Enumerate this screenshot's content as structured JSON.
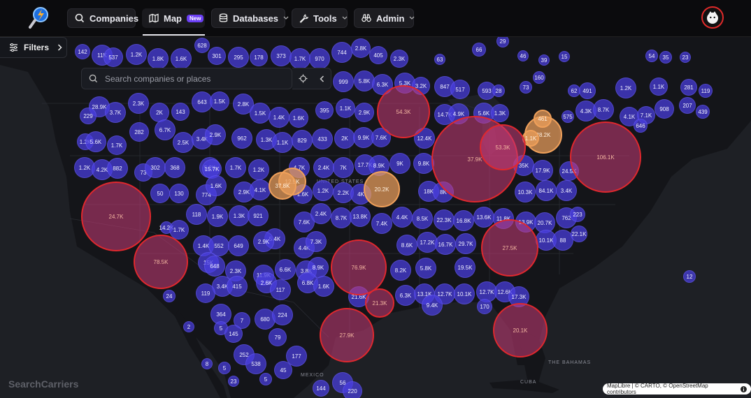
{
  "nav": {
    "companies": "Companies",
    "map": "Map",
    "map_badge": "New",
    "databases": "Databases",
    "tools": "Tools",
    "admin": "Admin"
  },
  "filters": {
    "label": "Filters"
  },
  "search": {
    "placeholder": "Search companies or places"
  },
  "watermark": "SearchCarriers",
  "attribution": "MapLibre | © CARTO, © OpenStreetMap contributors",
  "places": {
    "us": "UNITED STATES",
    "mexico": "MEXICO",
    "cuba": "CUBA",
    "bahamas": "THE BAHAMAS"
  },
  "colors": {
    "small": "#4a3fe0",
    "medium": "#f0a05a",
    "large": "#d0242c"
  },
  "clusters": [
    {
      "label": "142",
      "tier": "s"
    },
    {
      "label": "11K",
      "tier": "s"
    },
    {
      "label": "537",
      "tier": "s"
    },
    {
      "label": "1.2K",
      "tier": "s"
    },
    {
      "label": "1.8K",
      "tier": "s"
    },
    {
      "label": "1.6K",
      "tier": "s"
    },
    {
      "label": "628",
      "tier": "s"
    },
    {
      "label": "301",
      "tier": "s"
    },
    {
      "label": "295",
      "tier": "s"
    },
    {
      "label": "178",
      "tier": "s"
    },
    {
      "label": "373",
      "tier": "s"
    },
    {
      "label": "1.7K",
      "tier": "s"
    },
    {
      "label": "970",
      "tier": "s"
    },
    {
      "label": "744",
      "tier": "s"
    },
    {
      "label": "2.8K",
      "tier": "s"
    },
    {
      "label": "405",
      "tier": "s"
    },
    {
      "label": "2.3K",
      "tier": "s"
    },
    {
      "label": "66",
      "tier": "s"
    },
    {
      "label": "29",
      "tier": "s"
    },
    {
      "label": "63",
      "tier": "s"
    },
    {
      "label": "46",
      "tier": "s"
    },
    {
      "label": "39",
      "tier": "s"
    },
    {
      "label": "15",
      "tier": "s"
    },
    {
      "label": "54",
      "tier": "s"
    },
    {
      "label": "35",
      "tier": "s"
    },
    {
      "label": "23",
      "tier": "s"
    },
    {
      "label": "999",
      "tier": "s"
    },
    {
      "label": "5.8K",
      "tier": "s"
    },
    {
      "label": "6.3K",
      "tier": "s"
    },
    {
      "label": "5.3K",
      "tier": "s"
    },
    {
      "label": "3.2K",
      "tier": "s"
    },
    {
      "label": "847",
      "tier": "s"
    },
    {
      "label": "517",
      "tier": "s"
    },
    {
      "label": "593",
      "tier": "s"
    },
    {
      "label": "28",
      "tier": "s"
    },
    {
      "label": "160",
      "tier": "s"
    },
    {
      "label": "73",
      "tier": "s"
    },
    {
      "label": "62",
      "tier": "s"
    },
    {
      "label": "491",
      "tier": "s"
    },
    {
      "label": "1.2K",
      "tier": "s"
    },
    {
      "label": "1.1K",
      "tier": "s"
    },
    {
      "label": "281",
      "tier": "s"
    },
    {
      "label": "119",
      "tier": "s"
    },
    {
      "label": "28.9K",
      "tier": "s"
    },
    {
      "label": "3.7K",
      "tier": "s"
    },
    {
      "label": "2.3K",
      "tier": "s"
    },
    {
      "label": "2K",
      "tier": "s"
    },
    {
      "label": "143",
      "tier": "s"
    },
    {
      "label": "643",
      "tier": "s"
    },
    {
      "label": "1.5K",
      "tier": "s"
    },
    {
      "label": "2.8K",
      "tier": "s"
    },
    {
      "label": "1.5K",
      "tier": "s"
    },
    {
      "label": "1.4K",
      "tier": "s"
    },
    {
      "label": "1.6K",
      "tier": "s"
    },
    {
      "label": "395",
      "tier": "s"
    },
    {
      "label": "1.1K",
      "tier": "s"
    },
    {
      "label": "2.9K",
      "tier": "s"
    },
    {
      "label": "14.7K",
      "tier": "s"
    },
    {
      "label": "4.9K",
      "tier": "s"
    },
    {
      "label": "5.6K",
      "tier": "s"
    },
    {
      "label": "1.3K",
      "tier": "s"
    },
    {
      "label": "575",
      "tier": "s"
    },
    {
      "label": "4.3K",
      "tier": "s"
    },
    {
      "label": "8.7K",
      "tier": "s"
    },
    {
      "label": "4.1K",
      "tier": "s"
    },
    {
      "label": "7.1K",
      "tier": "s"
    },
    {
      "label": "908",
      "tier": "s"
    },
    {
      "label": "207",
      "tier": "s"
    },
    {
      "label": "439",
      "tier": "s"
    },
    {
      "label": "229",
      "tier": "s"
    },
    {
      "label": "282",
      "tier": "s"
    },
    {
      "label": "6.7K",
      "tier": "s"
    },
    {
      "label": "2.5K",
      "tier": "s"
    },
    {
      "label": "3.4K",
      "tier": "s"
    },
    {
      "label": "2.9K",
      "tier": "s"
    },
    {
      "label": "962",
      "tier": "s"
    },
    {
      "label": "1.3K",
      "tier": "s"
    },
    {
      "label": "1.1K",
      "tier": "s"
    },
    {
      "label": "829",
      "tier": "s"
    },
    {
      "label": "433",
      "tier": "s"
    },
    {
      "label": "2K",
      "tier": "s"
    },
    {
      "label": "9.9K",
      "tier": "s"
    },
    {
      "label": "7.6K",
      "tier": "s"
    },
    {
      "label": "12.4K",
      "tier": "s"
    },
    {
      "label": "646",
      "tier": "s"
    },
    {
      "label": "1.2K",
      "tier": "s"
    },
    {
      "label": "5.6K",
      "tier": "s"
    },
    {
      "label": "1.7K",
      "tier": "s"
    },
    {
      "label": "1.2K",
      "tier": "s"
    },
    {
      "label": "4.2K",
      "tier": "s"
    },
    {
      "label": "882",
      "tier": "s"
    },
    {
      "label": "73",
      "tier": "s"
    },
    {
      "label": "302",
      "tier": "s"
    },
    {
      "label": "368",
      "tier": "s"
    },
    {
      "label": "5.2K",
      "tier": "s"
    },
    {
      "label": "15.7K",
      "tier": "s"
    },
    {
      "label": "1.7K",
      "tier": "s"
    },
    {
      "label": "1.2K",
      "tier": "s"
    },
    {
      "label": "4.7K",
      "tier": "s"
    },
    {
      "label": "2.4K",
      "tier": "s"
    },
    {
      "label": "7K",
      "tier": "s"
    },
    {
      "label": "17.7K",
      "tier": "s"
    },
    {
      "label": "8.9K",
      "tier": "s"
    },
    {
      "label": "9K",
      "tier": "s"
    },
    {
      "label": "9.8K",
      "tier": "s"
    },
    {
      "label": "35K",
      "tier": "s"
    },
    {
      "label": "17.9K",
      "tier": "s"
    },
    {
      "label": "24.5K",
      "tier": "s"
    },
    {
      "label": "50",
      "tier": "s"
    },
    {
      "label": "130",
      "tier": "s"
    },
    {
      "label": "774",
      "tier": "s"
    },
    {
      "label": "1.6K",
      "tier": "s"
    },
    {
      "label": "2.9K",
      "tier": "s"
    },
    {
      "label": "4.1K",
      "tier": "s"
    },
    {
      "label": "1.6K",
      "tier": "s"
    },
    {
      "label": "1.2K",
      "tier": "s"
    },
    {
      "label": "2.2K",
      "tier": "s"
    },
    {
      "label": "4K",
      "tier": "s"
    },
    {
      "label": "18K",
      "tier": "s"
    },
    {
      "label": "8K",
      "tier": "s"
    },
    {
      "label": "10.3K",
      "tier": "s"
    },
    {
      "label": "84.1K",
      "tier": "s"
    },
    {
      "label": "3.4K",
      "tier": "s"
    },
    {
      "label": "118",
      "tier": "s"
    },
    {
      "label": "1.9K",
      "tier": "s"
    },
    {
      "label": "1.3K",
      "tier": "s"
    },
    {
      "label": "921",
      "tier": "s"
    },
    {
      "label": "7.6K",
      "tier": "s"
    },
    {
      "label": "2.4K",
      "tier": "s"
    },
    {
      "label": "8.7K",
      "tier": "s"
    },
    {
      "label": "13.8K",
      "tier": "s"
    },
    {
      "label": "7.4K",
      "tier": "s"
    },
    {
      "label": "4.4K",
      "tier": "s"
    },
    {
      "label": "8.5K",
      "tier": "s"
    },
    {
      "label": "22.3K",
      "tier": "s"
    },
    {
      "label": "16.8K",
      "tier": "s"
    },
    {
      "label": "13.6K",
      "tier": "s"
    },
    {
      "label": "11.8K",
      "tier": "s"
    },
    {
      "label": "13.9K",
      "tier": "s"
    },
    {
      "label": "20.7K",
      "tier": "s"
    },
    {
      "label": "762",
      "tier": "s"
    },
    {
      "label": "223",
      "tier": "s"
    },
    {
      "label": "14.2K",
      "tier": "s"
    },
    {
      "label": "1.7K",
      "tier": "s"
    },
    {
      "label": "1.4K",
      "tier": "s"
    },
    {
      "label": "552",
      "tier": "s"
    },
    {
      "label": "649",
      "tier": "s"
    },
    {
      "label": "5.4K",
      "tier": "s"
    },
    {
      "label": "2.9K",
      "tier": "s"
    },
    {
      "label": "4.4K",
      "tier": "s"
    },
    {
      "label": "7.3K",
      "tier": "s"
    },
    {
      "label": "8.6K",
      "tier": "s"
    },
    {
      "label": "17.2K",
      "tier": "s"
    },
    {
      "label": "16.7K",
      "tier": "s"
    },
    {
      "label": "29.7K",
      "tier": "s"
    },
    {
      "label": "10.1K",
      "tier": "s"
    },
    {
      "label": "88",
      "tier": "s"
    },
    {
      "label": "22.1K",
      "tier": "s"
    },
    {
      "label": "15K",
      "tier": "s"
    },
    {
      "label": "648",
      "tier": "s"
    },
    {
      "label": "2.3K",
      "tier": "s"
    },
    {
      "label": "11.9K",
      "tier": "s"
    },
    {
      "label": "2.6K",
      "tier": "s"
    },
    {
      "label": "6.6K",
      "tier": "s"
    },
    {
      "label": "3.8K",
      "tier": "s"
    },
    {
      "label": "8.9K",
      "tier": "s"
    },
    {
      "label": "6.8K",
      "tier": "s"
    },
    {
      "label": "8.2K",
      "tier": "s"
    },
    {
      "label": "5.8K",
      "tier": "s"
    },
    {
      "label": "19.5K",
      "tier": "s"
    },
    {
      "label": "12",
      "tier": "s"
    },
    {
      "label": "3.4K",
      "tier": "s"
    },
    {
      "label": "415",
      "tier": "s"
    },
    {
      "label": "119",
      "tier": "s"
    },
    {
      "label": "117",
      "tier": "s"
    },
    {
      "label": "1.6K",
      "tier": "s"
    },
    {
      "label": "21.6K",
      "tier": "s"
    },
    {
      "label": "6.3K",
      "tier": "s"
    },
    {
      "label": "13.1K",
      "tier": "s"
    },
    {
      "label": "12.7K",
      "tier": "s"
    },
    {
      "label": "10.1K",
      "tier": "s"
    },
    {
      "label": "12.7K",
      "tier": "s"
    },
    {
      "label": "12.6K",
      "tier": "s"
    },
    {
      "label": "17.3K",
      "tier": "s"
    },
    {
      "label": "24",
      "tier": "s"
    },
    {
      "label": "364",
      "tier": "s"
    },
    {
      "label": "7",
      "tier": "s"
    },
    {
      "label": "680",
      "tier": "s"
    },
    {
      "label": "224",
      "tier": "s"
    },
    {
      "label": "2",
      "tier": "s"
    },
    {
      "label": "5",
      "tier": "s"
    },
    {
      "label": "145",
      "tier": "s"
    },
    {
      "label": "79",
      "tier": "s"
    },
    {
      "label": "9.4K",
      "tier": "s"
    },
    {
      "label": "170",
      "tier": "s"
    },
    {
      "label": "8",
      "tier": "s"
    },
    {
      "label": "252",
      "tier": "s"
    },
    {
      "label": "538",
      "tier": "s"
    },
    {
      "label": "177",
      "tier": "s"
    },
    {
      "label": "45",
      "tier": "s"
    },
    {
      "label": "5",
      "tier": "s"
    },
    {
      "label": "23",
      "tier": "s"
    },
    {
      "label": "5",
      "tier": "s"
    },
    {
      "label": "144",
      "tier": "s"
    },
    {
      "label": "56",
      "tier": "s"
    },
    {
      "label": "220",
      "tier": "s"
    },
    {
      "label": "12.5K",
      "tier": "m"
    },
    {
      "label": "37.8K",
      "tier": "m"
    },
    {
      "label": "20.2K",
      "tier": "m"
    },
    {
      "label": "28.2K",
      "tier": "m"
    },
    {
      "label": "461",
      "tier": "m"
    },
    {
      "label": "1.1K",
      "tier": "m"
    },
    {
      "label": "54.3K",
      "tier": "l"
    },
    {
      "label": "37.9K",
      "tier": "l"
    },
    {
      "label": "53.3K",
      "tier": "l"
    },
    {
      "label": "106.1K",
      "tier": "l"
    },
    {
      "label": "24.7K",
      "tier": "l"
    },
    {
      "label": "78.5K",
      "tier": "l"
    },
    {
      "label": "76.9K",
      "tier": "l"
    },
    {
      "label": "27.5K",
      "tier": "l"
    },
    {
      "label": "21.3K",
      "tier": "l"
    },
    {
      "label": "27.9K",
      "tier": "l"
    },
    {
      "label": "20.1K",
      "tier": "l"
    }
  ]
}
